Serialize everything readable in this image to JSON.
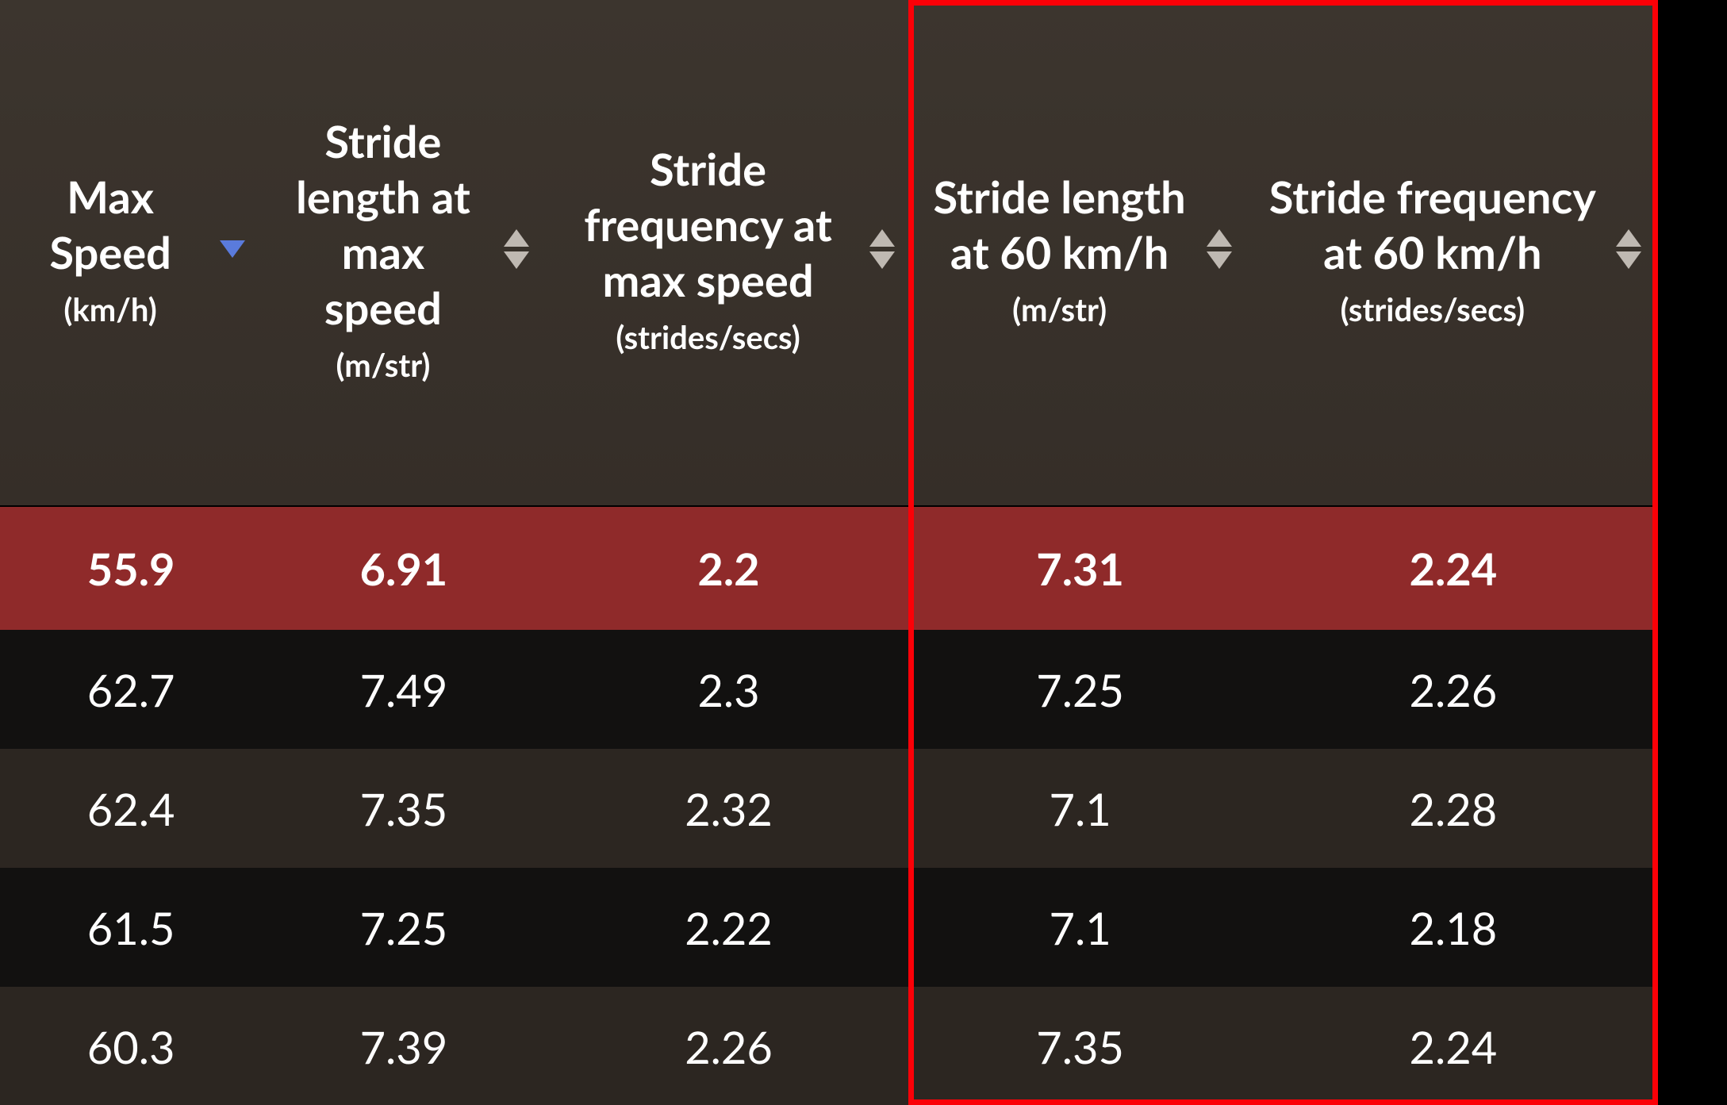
{
  "table": {
    "type": "table",
    "background_color": "#2f2822",
    "header_bg_color": "#3a332c",
    "row_selected_bg": "#8f2a2a",
    "row_odd_bg": "#121110",
    "row_even_bg": "#2c2621",
    "text_color": "#ffffff",
    "sort_arrow_neutral_color": "#bfb9b2",
    "sort_arrow_active_color": "#5a7bdc",
    "header_fontsize": 56,
    "header_unit_fontsize": 40,
    "cell_fontsize": 56,
    "highlight_border_color": "#fb0007",
    "highlight_border_width": 7,
    "columns": [
      {
        "id": "max_speed",
        "title": "Max Speed",
        "unit": "(km/h)",
        "sort": "desc-active",
        "width_pct": 15.8
      },
      {
        "id": "stride_len_max",
        "title": "Stride length at max speed",
        "unit": "(m/str)",
        "sort": "both",
        "width_pct": 17.1
      },
      {
        "id": "stride_freq_max",
        "title": "Stride frequency at max speed",
        "unit": "(strides/secs)",
        "sort": "both",
        "width_pct": 22.1
      },
      {
        "id": "stride_len_60",
        "title": "Stride length at 60 km/h",
        "unit": "(m/str)",
        "sort": "both",
        "width_pct": 20.3
      },
      {
        "id": "stride_freq_60",
        "title": "Stride frequency at 60 km/h",
        "unit": "(strides/secs)",
        "sort": "both",
        "width_pct": 24.7
      }
    ],
    "highlight_columns": [
      "stride_len_60",
      "stride_freq_60"
    ],
    "rows": [
      {
        "selected": true,
        "cells": [
          "55.9",
          "6.91",
          "2.2",
          "7.31",
          "2.24"
        ]
      },
      {
        "selected": false,
        "cells": [
          "62.7",
          "7.49",
          "2.3",
          "7.25",
          "2.26"
        ]
      },
      {
        "selected": false,
        "cells": [
          "62.4",
          "7.35",
          "2.32",
          "7.1",
          "2.28"
        ]
      },
      {
        "selected": false,
        "cells": [
          "61.5",
          "7.25",
          "2.22",
          "7.1",
          "2.18"
        ]
      },
      {
        "selected": false,
        "cells": [
          "60.3",
          "7.39",
          "2.26",
          "7.35",
          "2.24"
        ]
      }
    ]
  }
}
